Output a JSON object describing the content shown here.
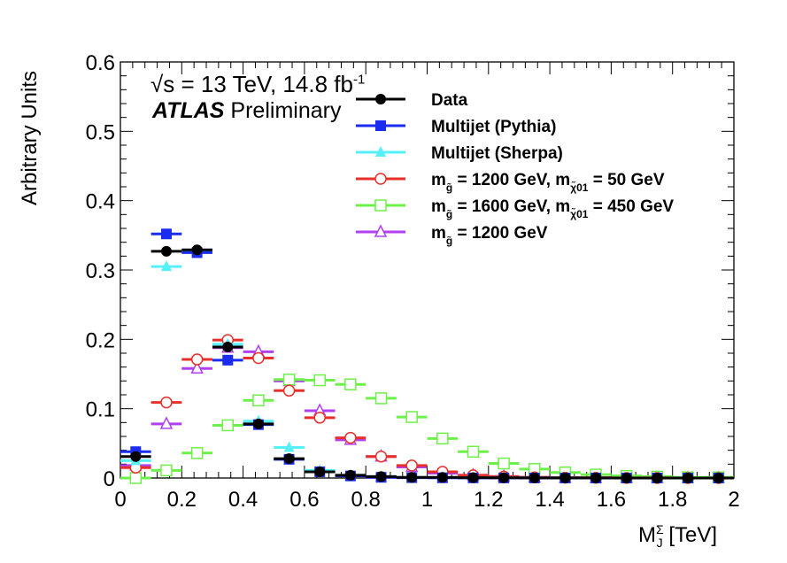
{
  "chart_data": {
    "type": "scatter",
    "xlabel": "M_J^Σ [TeV]",
    "ylabel": "Arbitrary Units",
    "xlim": [
      0,
      2
    ],
    "ylim": [
      0,
      0.6
    ],
    "x_ticks": [
      "0",
      "0.2",
      "0.4",
      "0.6",
      "0.8",
      "1",
      "1.2",
      "1.4",
      "1.6",
      "1.8",
      "2"
    ],
    "y_ticks": [
      "0",
      "0.1",
      "0.2",
      "0.3",
      "0.4",
      "0.5",
      "0.6"
    ],
    "bin_width": 0.1,
    "grid": false,
    "legend_position": "top-right",
    "annotations": [
      "√s = 13 TeV, 14.8 fb-1",
      "ATLAS Preliminary"
    ],
    "x": [
      0.05,
      0.15,
      0.25,
      0.35,
      0.45,
      0.55,
      0.65,
      0.75,
      0.85,
      0.95,
      1.05,
      1.15,
      1.25,
      1.35,
      1.45,
      1.55,
      1.65,
      1.75,
      1.85,
      1.95
    ],
    "series": [
      {
        "name": "Data",
        "color": "#000000",
        "marker": "filled-circle",
        "values": [
          0.031,
          0.327,
          0.329,
          0.189,
          0.078,
          0.028,
          0.009,
          0.004,
          0.002,
          0.001,
          0.001,
          0.0005,
          0.0003,
          0.0002,
          0.0001,
          0.0001,
          0.0,
          0.0,
          0.0,
          0.0
        ]
      },
      {
        "name": "Multijet (Pythia)",
        "color": "#1a2cf0",
        "marker": "filled-square",
        "values": [
          0.038,
          0.352,
          0.325,
          0.17,
          0.077,
          0.027,
          0.009,
          0.003,
          0.001,
          0.0005,
          0.0003,
          0.0002,
          0.0001,
          0.0001,
          0.0,
          0.0,
          0.0,
          0.0,
          0.0,
          0.0
        ]
      },
      {
        "name": "Multijet (Sherpa)",
        "color": "#55f0f8",
        "marker": "filled-triangle",
        "values": [
          0.025,
          0.305,
          0.328,
          0.193,
          0.082,
          0.044,
          0.011,
          0.004,
          0.002,
          0.001,
          0.0005,
          0.0003,
          0.0002,
          0.0001,
          0.0001,
          0.0,
          0.0,
          0.0,
          0.0,
          0.0
        ]
      },
      {
        "name": "m_g̃ = 1200 GeV, m_χ̃01 = 50 GeV",
        "color": "#e8302a",
        "marker": "open-circle",
        "values": [
          0.015,
          0.109,
          0.171,
          0.199,
          0.173,
          0.126,
          0.087,
          0.058,
          0.031,
          0.018,
          0.009,
          0.004,
          0.002,
          0.001,
          0.0005,
          0.0003,
          0.0002,
          0.0001,
          0.0,
          0.0
        ]
      },
      {
        "name": "m_g̃ = 1600 GeV, m_χ̃01 = 450 GeV",
        "color": "#6ef04a",
        "marker": "open-square",
        "values": [
          0.0,
          0.011,
          0.036,
          0.076,
          0.112,
          0.142,
          0.141,
          0.135,
          0.115,
          0.088,
          0.057,
          0.038,
          0.021,
          0.013,
          0.008,
          0.005,
          0.003,
          0.002,
          0.001,
          0.001
        ]
      },
      {
        "name": "m_g̃ = 1200 GeV",
        "color": "#b040f0",
        "marker": "open-triangle",
        "values": [
          0.018,
          0.078,
          0.158,
          0.188,
          0.182,
          0.14,
          0.097,
          0.055,
          0.031,
          0.016,
          0.007,
          0.004,
          0.002,
          0.001,
          0.0005,
          0.0003,
          0.0002,
          0.0001,
          0.0,
          0.0
        ]
      }
    ]
  },
  "text": {
    "energy_main": "√s = 13 TeV, 14.8 fb",
    "energy_sup": "-1",
    "atlas_bold": "ATLAS",
    "atlas_rest": " Preliminary",
    "ylabel": "Arbitrary Units",
    "xlabel_m": "M",
    "xlabel_sub": "J",
    "xlabel_sup": "Σ",
    "xlabel_unit": " [TeV]"
  }
}
